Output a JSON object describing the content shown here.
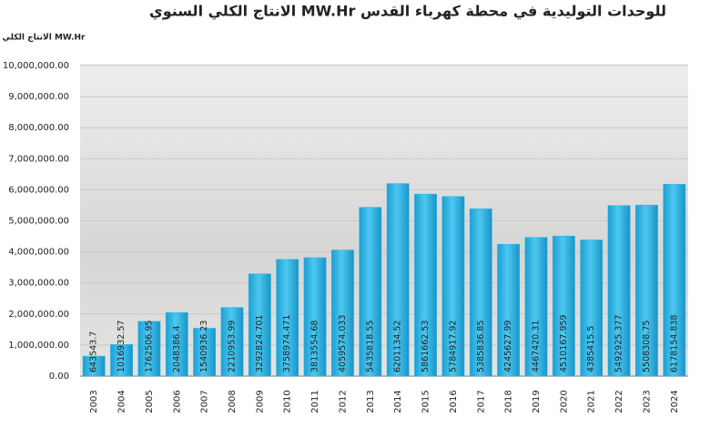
{
  "chart_data": {
    "type": "bar",
    "title": "الانتاج الكلي السنوي MW.Hr للوحدات التوليدية في محطة كهرباء القدس",
    "y_label": "الانتاج الكلي MW.Hr",
    "categories": [
      "2003",
      "2004",
      "2005",
      "2006",
      "2007",
      "2008",
      "2009",
      "2010",
      "2011",
      "2012",
      "2013",
      "2014",
      "2015",
      "2016",
      "2017",
      "2018",
      "2019",
      "2020",
      "2021",
      "2022",
      "2023",
      "2024"
    ],
    "values": [
      643543.7,
      1016932.57,
      1762506.95,
      2048386.4,
      1540936.23,
      2210953.99,
      3292824.701,
      3758974.471,
      3813554.68,
      4059574.033,
      5435818.55,
      6201134.52,
      5861662.53,
      5784917.92,
      5385836.85,
      4245627.99,
      4467420.31,
      4510167.959,
      4385415.5,
      5492925.377,
      5508308.75,
      6178154.838
    ],
    "color": "#2bb5e6",
    "ylim": [
      0,
      10000000
    ],
    "yticks": [
      {
        "value": 0,
        "label": "0.00"
      },
      {
        "value": 1000000,
        "label": "1,000,000.00"
      },
      {
        "value": 2000000,
        "label": "2,000,000.00"
      },
      {
        "value": 3000000,
        "label": "3,000,000.00"
      },
      {
        "value": 4000000,
        "label": "4,000,000.00"
      },
      {
        "value": 5000000,
        "label": "5,000,000.00"
      },
      {
        "value": 6000000,
        "label": "6,000,000.00"
      },
      {
        "value": 7000000,
        "label": "7,000,000.00"
      },
      {
        "value": 8000000,
        "label": "8,000,000.00"
      },
      {
        "value": 9000000,
        "label": "9,000,000.00"
      },
      {
        "value": 10000000,
        "label": "10,000,000.00"
      }
    ],
    "grid": true
  }
}
